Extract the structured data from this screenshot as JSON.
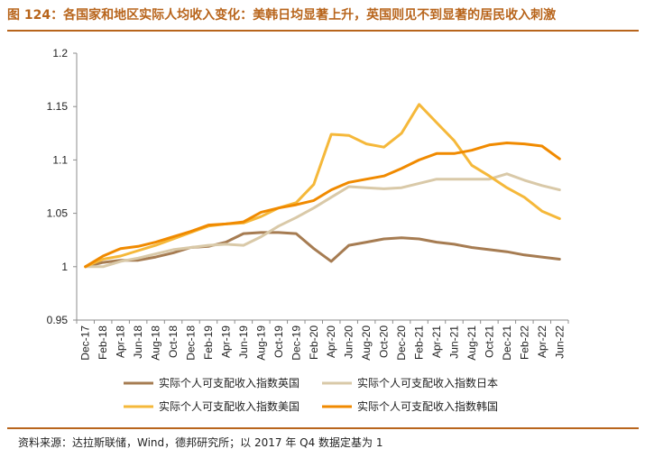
{
  "header": {
    "title": "图 124：各国家和地区实际人均收入变化：美韩日均显著上升，英国则见不到显著的居民收入刺激"
  },
  "footer": {
    "source": "资料来源：达拉斯联储，Wind，德邦研究所；以 2017 年 Q4 数据定基为 1"
  },
  "chart_data": {
    "type": "line",
    "title": "",
    "xlabel": "",
    "ylabel": "",
    "ylim": [
      0.95,
      1.2
    ],
    "yticks": [
      "0.95",
      "1",
      "1.05",
      "1.1",
      "1.15",
      "1.2"
    ],
    "grid": false,
    "legend_position": "bottom",
    "x": [
      "Dec-17",
      "Feb-18",
      "Apr-18",
      "Jun-18",
      "Aug-18",
      "Oct-18",
      "Dec-18",
      "Feb-19",
      "Apr-19",
      "Jun-19",
      "Aug-19",
      "Oct-19",
      "Dec-19",
      "Feb-20",
      "Apr-20",
      "Jun-20",
      "Aug-20",
      "Oct-20",
      "Dec-20",
      "Feb-21",
      "Apr-21",
      "Jun-21",
      "Aug-21",
      "Oct-21",
      "Dec-21",
      "Feb-22",
      "Apr-22",
      "Jun-22"
    ],
    "series": [
      {
        "name": "实际个人可支配收入指数英国",
        "color": "#A67C52",
        "values": [
          1.0,
          1.004,
          1.006,
          1.006,
          1.009,
          1.013,
          1.018,
          1.019,
          1.023,
          1.031,
          1.032,
          1.032,
          1.031,
          1.017,
          1.005,
          1.02,
          1.023,
          1.026,
          1.027,
          1.026,
          1.023,
          1.021,
          1.018,
          1.016,
          1.014,
          1.011,
          1.009,
          1.007
        ]
      },
      {
        "name": "实际个人可支配收入指数日本",
        "color": "#D9C9A8",
        "values": [
          1.0,
          1.0,
          1.005,
          1.008,
          1.012,
          1.016,
          1.018,
          1.02,
          1.021,
          1.02,
          1.028,
          1.038,
          1.046,
          1.055,
          1.065,
          1.075,
          1.074,
          1.073,
          1.074,
          1.078,
          1.082,
          1.082,
          1.082,
          1.082,
          1.087,
          1.081,
          1.076,
          1.072
        ]
      },
      {
        "name": "实际个人可支配收入指数美国",
        "color": "#F5B83A",
        "values": [
          1.0,
          1.007,
          1.01,
          1.015,
          1.02,
          1.026,
          1.032,
          1.038,
          1.04,
          1.041,
          1.047,
          1.055,
          1.06,
          1.077,
          1.124,
          1.123,
          1.115,
          1.112,
          1.125,
          1.152,
          1.135,
          1.118,
          1.095,
          1.085,
          1.074,
          1.065,
          1.052,
          1.045
        ]
      },
      {
        "name": "实际个人可支配收入指数韩国",
        "color": "#F08A00",
        "values": [
          1.0,
          1.01,
          1.017,
          1.019,
          1.023,
          1.028,
          1.033,
          1.039,
          1.04,
          1.042,
          1.051,
          1.055,
          1.058,
          1.062,
          1.072,
          1.079,
          1.082,
          1.085,
          1.092,
          1.1,
          1.106,
          1.106,
          1.109,
          1.114,
          1.116,
          1.115,
          1.113,
          1.101
        ]
      }
    ]
  }
}
